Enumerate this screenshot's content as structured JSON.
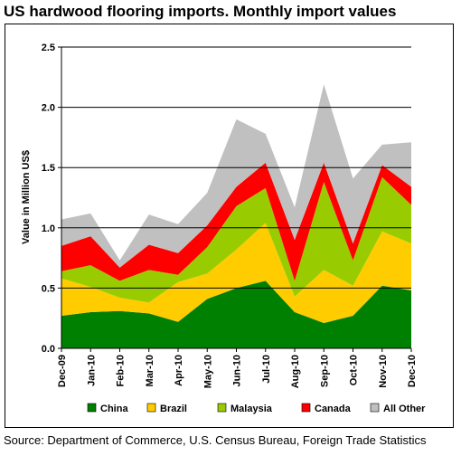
{
  "header": {
    "title": "US hardwood flooring imports. Monthly import values"
  },
  "footer": {
    "source": "Source: Department of Commerce, U.S. Census Bureau, Foreign Trade Statistics"
  },
  "colors": {
    "China": "#008000",
    "Brazil": "#FFCC00",
    "Malaysia": "#99CC00",
    "Canada": "#FF0000",
    "All Other": "#C0C0C0"
  },
  "chart_data": {
    "type": "area",
    "stacked": true,
    "title": "",
    "xlabel": "",
    "ylabel": "Value in Million US$",
    "ylim": [
      0,
      2.5
    ],
    "yticks": [
      "0.0",
      "0.5",
      "1.0",
      "1.5",
      "2.0",
      "2.5"
    ],
    "grid": "horizontal",
    "legend_position": "bottom",
    "categories": [
      "Dec-09",
      "Jan-10",
      "Feb-10",
      "Mar-10",
      "Apr-10",
      "May-10",
      "Jun-10",
      "Jul-10",
      "Aug-10",
      "Sep-10",
      "Oct-10",
      "Nov-10",
      "Dec-10"
    ],
    "series": [
      {
        "name": "China",
        "values": [
          0.27,
          0.3,
          0.31,
          0.29,
          0.22,
          0.41,
          0.5,
          0.56,
          0.3,
          0.21,
          0.27,
          0.52,
          0.48
        ]
      },
      {
        "name": "Brazil",
        "values": [
          0.31,
          0.21,
          0.11,
          0.09,
          0.33,
          0.21,
          0.32,
          0.48,
          0.13,
          0.44,
          0.25,
          0.45,
          0.39
        ]
      },
      {
        "name": "Malaysia",
        "values": [
          0.06,
          0.18,
          0.14,
          0.27,
          0.06,
          0.22,
          0.36,
          0.29,
          0.13,
          0.73,
          0.21,
          0.45,
          0.32
        ]
      },
      {
        "name": "Canada",
        "values": [
          0.21,
          0.24,
          0.11,
          0.21,
          0.18,
          0.18,
          0.16,
          0.21,
          0.34,
          0.16,
          0.14,
          0.1,
          0.15
        ]
      },
      {
        "name": "All Other",
        "values": [
          0.22,
          0.19,
          0.06,
          0.25,
          0.24,
          0.27,
          0.56,
          0.24,
          0.27,
          0.65,
          0.54,
          0.17,
          0.37
        ]
      }
    ]
  }
}
